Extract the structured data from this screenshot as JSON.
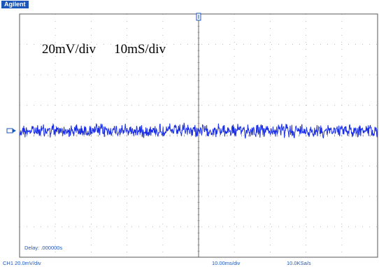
{
  "header": {
    "brand": "Agilent"
  },
  "annotation": {
    "vertical_scale": "20mV/div",
    "time_scale": "10mS/div"
  },
  "screen": {
    "delay_label": "Delay: .000000s",
    "channel_marker_color": "#1c56b8",
    "trace_color": "#1a2ee6",
    "grid_color": "#aaaaaa"
  },
  "status": {
    "channel": "CH1 20.0mV/div",
    "timebase": "10.00ms/div",
    "sample_rate": "10.0KSa/s"
  }
}
